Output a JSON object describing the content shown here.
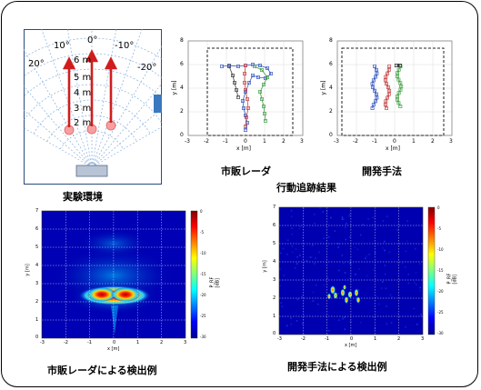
{
  "experiment_setup": {
    "caption": "実験環境",
    "angles": {
      "a0": "0°",
      "a10l": "10°",
      "a10r": "-10°",
      "a20l": "20°",
      "a20r": "-20°"
    },
    "distances": {
      "d6": "6 m",
      "d5": "5 m",
      "d4": "4 m",
      "d3": "3 m",
      "d2": "2 m"
    }
  },
  "tracking": {
    "group_caption": "行動追跡結果",
    "commercial": {
      "caption": "市販レーダ",
      "ylabel": "y [m]",
      "xlabel": "x [m]",
      "yticks": [
        "0",
        "2",
        "4",
        "6",
        "8"
      ],
      "xticks": [
        "-3",
        "-2",
        "-1",
        "0",
        "1",
        "2",
        "3"
      ]
    },
    "developed": {
      "caption": "開発手法",
      "ylabel": "y [m]",
      "xlabel": "x [m]",
      "yticks": [
        "0",
        "2",
        "4",
        "6",
        "8"
      ],
      "xticks": [
        "-3",
        "-2",
        "-1",
        "0",
        "1",
        "2",
        "3"
      ]
    }
  },
  "detection": {
    "commercial": {
      "caption": "市販レーダによる検出例",
      "ylabel": "y [m]",
      "xlabel": "x [m]",
      "cblabel": "P_RF [dB]",
      "yticks": [
        "0",
        "1",
        "2",
        "3",
        "4",
        "5",
        "6",
        "7"
      ],
      "xticks": [
        "-3",
        "-2",
        "-1",
        "0",
        "1",
        "2",
        "3"
      ],
      "cbticks": [
        "0",
        "-5",
        "-10",
        "-15",
        "-20",
        "-25",
        "-30"
      ]
    },
    "developed": {
      "caption": "開発手法による検出例",
      "ylabel": "y [m]",
      "xlabel": "x [m]",
      "cblabel": "P_RF [dB]",
      "yticks": [
        "0",
        "1",
        "2",
        "3",
        "4",
        "5",
        "6",
        "7"
      ],
      "xticks": [
        "-3",
        "-2",
        "-1",
        "0",
        "1",
        "2",
        "3"
      ],
      "cbticks": [
        "0",
        "-5",
        "-10",
        "-15",
        "-20",
        "-25",
        "-30"
      ]
    }
  }
}
